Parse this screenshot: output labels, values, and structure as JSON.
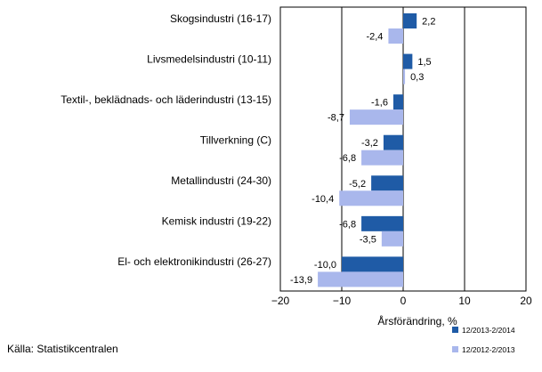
{
  "chart_data": {
    "type": "bar",
    "orientation": "horizontal",
    "categories": [
      "Skogsindustri (16-17)",
      "Livsmedelsindustri (10-11)",
      "Textil-, beklädnads- och läderindustri (13-15)",
      "Tillverkning (C)",
      "Metallindustri (24-30)",
      "Kemisk industri (19-22)",
      "El- och elektronikindustri (26-27)"
    ],
    "series": [
      {
        "name": "12/2013-2/2014",
        "color": "#1f5ba6",
        "values": [
          2.2,
          1.5,
          -1.6,
          -3.2,
          -5.2,
          -6.8,
          -10.0
        ],
        "labels": [
          "2,2",
          "1,5",
          "-1,6",
          "-3,2",
          "-5,2",
          "-6,8",
          "-10,0"
        ]
      },
      {
        "name": "12/2012-2/2013",
        "color": "#a9b7ec",
        "values": [
          -2.4,
          0.3,
          -8.7,
          -6.8,
          -10.4,
          -3.5,
          -13.9
        ],
        "labels": [
          "-2,4",
          "0,3",
          "-8,7",
          "-6,8",
          "-10,4",
          "-3,5",
          "-13,9"
        ]
      }
    ],
    "xlabel": "Årsförändring, %",
    "xlim": [
      -20,
      20
    ],
    "xticks": [
      -20,
      -10,
      0,
      10,
      20
    ],
    "grid": "vertical at -10, 0, 10",
    "legend_position": "bottom-right"
  },
  "source": "Källa: Statistikcentralen"
}
